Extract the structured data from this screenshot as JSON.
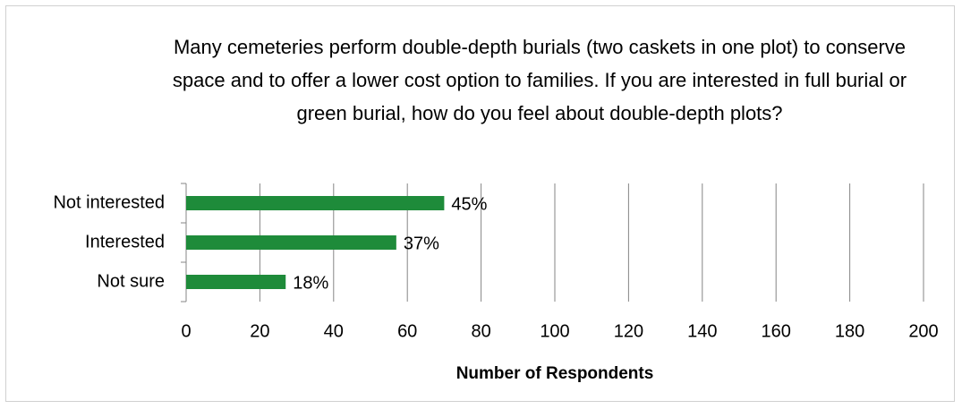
{
  "chart_data": {
    "type": "barh",
    "title": "Many cemeteries perform double-depth burials (two caskets in one plot) to conserve space and to offer a lower cost option to families. If you are interested in full burial or green burial, how do you feel about double-depth plots?",
    "categories": [
      "Not interested",
      "Interested",
      "Not sure"
    ],
    "values": [
      70,
      57,
      27
    ],
    "value_labels": [
      "45%",
      "37%",
      "18%"
    ],
    "color": "#1e8b3a",
    "xlabel": "Number of Respondents",
    "xlim": [
      0,
      200
    ],
    "xticks": [
      0,
      20,
      40,
      60,
      80,
      100,
      120,
      140,
      160,
      180,
      200
    ],
    "grid": true
  }
}
